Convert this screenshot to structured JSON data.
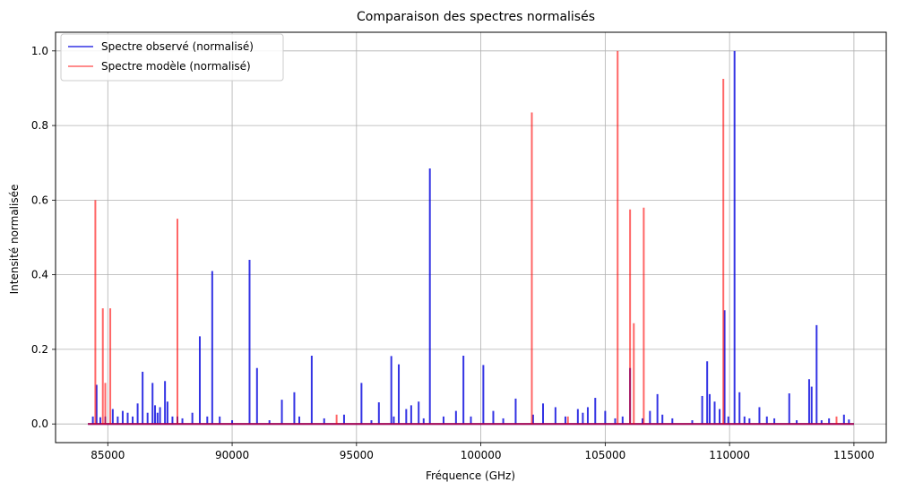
{
  "chart_data": {
    "type": "line",
    "title": "Comparaison des spectres normalisés",
    "xlabel": "Fréquence (GHz)",
    "ylabel": "Intensité normalisée",
    "xlim": [
      82900,
      116300
    ],
    "ylim": [
      -0.05,
      1.05
    ],
    "x_ticks": [
      85000,
      90000,
      95000,
      100000,
      105000,
      110000,
      115000
    ],
    "y_ticks": [
      0.0,
      0.2,
      0.4,
      0.6,
      0.8,
      1.0
    ],
    "y_tick_labels": [
      "0.0",
      "0.2",
      "0.4",
      "0.6",
      "0.8",
      "1.0"
    ],
    "grid": true,
    "legend_position": "top-left",
    "series": [
      {
        "name": "Spectre observé (normalisé)",
        "color": "#0000dd",
        "alpha": 0.8,
        "x_range": [
          84200,
          115000
        ],
        "peaks": [
          [
            84400,
            0.02
          ],
          [
            84550,
            0.105
          ],
          [
            84700,
            0.018
          ],
          [
            84900,
            0.02
          ],
          [
            85200,
            0.04
          ],
          [
            85400,
            0.02
          ],
          [
            85600,
            0.035
          ],
          [
            85800,
            0.03
          ],
          [
            86000,
            0.02
          ],
          [
            86200,
            0.055
          ],
          [
            86400,
            0.14
          ],
          [
            86600,
            0.03
          ],
          [
            86800,
            0.11
          ],
          [
            86900,
            0.05
          ],
          [
            87000,
            0.03
          ],
          [
            87100,
            0.045
          ],
          [
            87300,
            0.115
          ],
          [
            87400,
            0.06
          ],
          [
            87600,
            0.02
          ],
          [
            87800,
            0.02
          ],
          [
            88000,
            0.015
          ],
          [
            88400,
            0.03
          ],
          [
            88700,
            0.235
          ],
          [
            89000,
            0.02
          ],
          [
            89200,
            0.41
          ],
          [
            89500,
            0.02
          ],
          [
            90000,
            0.01
          ],
          [
            90700,
            0.44
          ],
          [
            91000,
            0.15
          ],
          [
            91500,
            0.01
          ],
          [
            92000,
            0.065
          ],
          [
            92500,
            0.085
          ],
          [
            92700,
            0.02
          ],
          [
            93200,
            0.183
          ],
          [
            93700,
            0.015
          ],
          [
            94500,
            0.025
          ],
          [
            95200,
            0.11
          ],
          [
            95600,
            0.01
          ],
          [
            95900,
            0.058
          ],
          [
            96400,
            0.182
          ],
          [
            96500,
            0.02
          ],
          [
            96700,
            0.16
          ],
          [
            97000,
            0.04
          ],
          [
            97200,
            0.05
          ],
          [
            97500,
            0.06
          ],
          [
            97700,
            0.015
          ],
          [
            97950,
            0.685
          ],
          [
            98500,
            0.02
          ],
          [
            99000,
            0.035
          ],
          [
            99300,
            0.183
          ],
          [
            99600,
            0.02
          ],
          [
            100100,
            0.158
          ],
          [
            100500,
            0.035
          ],
          [
            100900,
            0.015
          ],
          [
            101400,
            0.068
          ],
          [
            102100,
            0.025
          ],
          [
            102500,
            0.055
          ],
          [
            103000,
            0.045
          ],
          [
            103400,
            0.02
          ],
          [
            103900,
            0.04
          ],
          [
            104100,
            0.03
          ],
          [
            104300,
            0.045
          ],
          [
            104600,
            0.07
          ],
          [
            105000,
            0.035
          ],
          [
            105400,
            0.015
          ],
          [
            105700,
            0.02
          ],
          [
            106000,
            0.15
          ],
          [
            106500,
            0.015
          ],
          [
            106800,
            0.035
          ],
          [
            107100,
            0.08
          ],
          [
            107300,
            0.025
          ],
          [
            107700,
            0.015
          ],
          [
            108500,
            0.01
          ],
          [
            108900,
            0.075
          ],
          [
            109100,
            0.168
          ],
          [
            109200,
            0.08
          ],
          [
            109400,
            0.06
          ],
          [
            109600,
            0.04
          ],
          [
            109800,
            0.305
          ],
          [
            109950,
            0.02
          ],
          [
            110200,
            1.0
          ],
          [
            110400,
            0.085
          ],
          [
            110600,
            0.02
          ],
          [
            110800,
            0.015
          ],
          [
            111200,
            0.045
          ],
          [
            111500,
            0.02
          ],
          [
            111800,
            0.015
          ],
          [
            112400,
            0.082
          ],
          [
            112700,
            0.01
          ],
          [
            113200,
            0.12
          ],
          [
            113300,
            0.1
          ],
          [
            113500,
            0.265
          ],
          [
            113700,
            0.01
          ],
          [
            114000,
            0.015
          ],
          [
            114600,
            0.025
          ],
          [
            114800,
            0.012
          ]
        ]
      },
      {
        "name": "Spectre modèle (normalisé)",
        "color": "#ff0000",
        "alpha": 0.6,
        "x_range": [
          84200,
          115000
        ],
        "peaks": [
          [
            84500,
            0.6
          ],
          [
            84800,
            0.31
          ],
          [
            84900,
            0.11
          ],
          [
            85100,
            0.31
          ],
          [
            87800,
            0.55
          ],
          [
            94200,
            0.025
          ],
          [
            102050,
            0.835
          ],
          [
            103500,
            0.02
          ],
          [
            105500,
            1.0
          ],
          [
            106000,
            0.575
          ],
          [
            106150,
            0.27
          ],
          [
            106550,
            0.58
          ],
          [
            109750,
            0.925
          ],
          [
            114300,
            0.02
          ]
        ]
      }
    ]
  }
}
